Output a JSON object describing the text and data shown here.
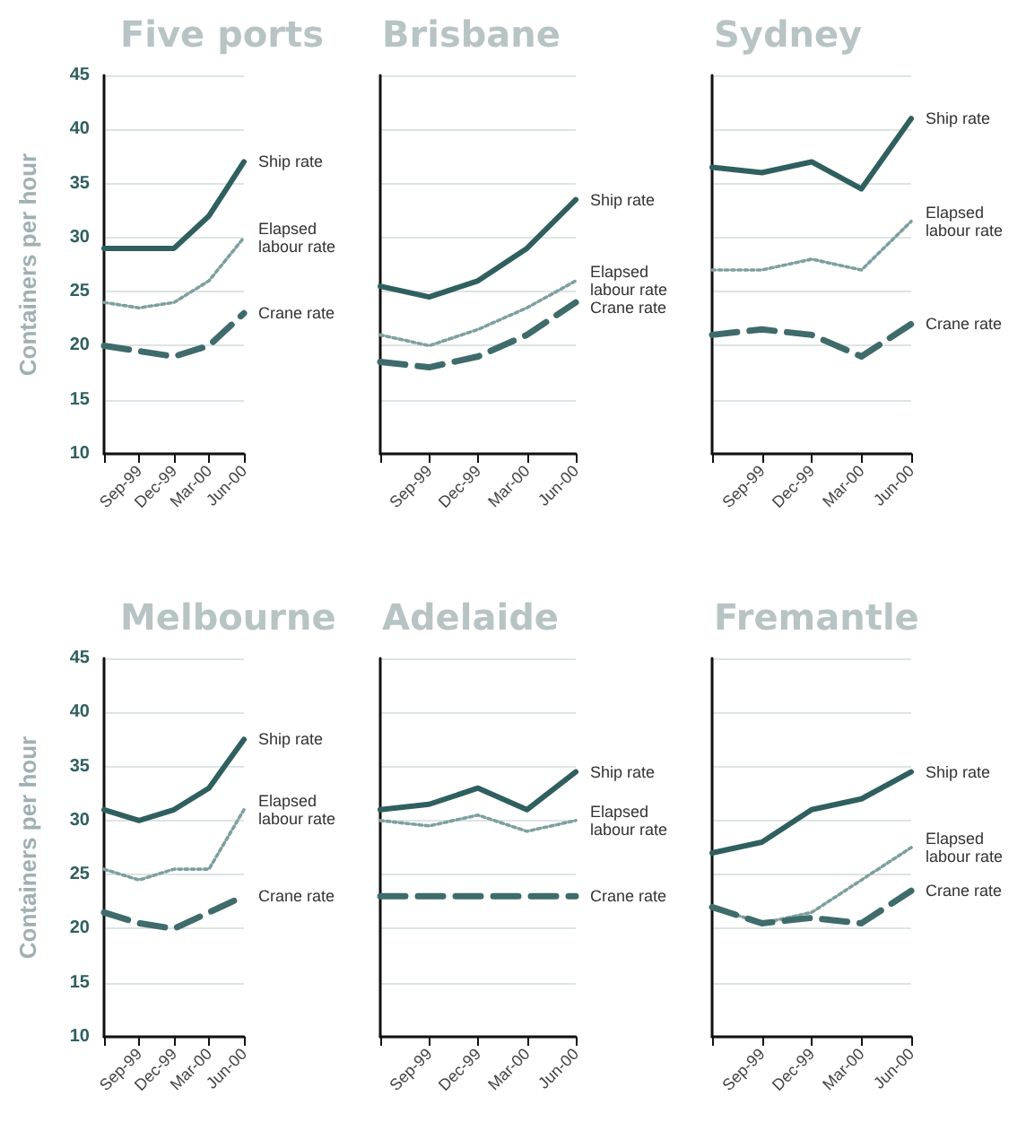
{
  "chart_data": [
    {
      "type": "line",
      "title": "Five ports",
      "ylabel": "Containers per hour",
      "categories": [
        null,
        "Sep-99",
        "Dec-99",
        "Mar-00",
        "Jun-00"
      ],
      "ylim": [
        10,
        45
      ],
      "yticks": [
        10,
        15,
        20,
        25,
        30,
        35,
        40,
        45
      ],
      "grid": "y",
      "legend": false,
      "marker": "none",
      "series": [
        {
          "name": "Ship rate",
          "color": "#2f5f5f",
          "line_style": "solid",
          "values": [
            29,
            29,
            29,
            32,
            37
          ]
        },
        {
          "name": "Elapsed labour rate",
          "color": "#7f9f9f",
          "line_style": "dotted",
          "values": [
            24,
            23.5,
            24,
            26,
            30
          ]
        },
        {
          "name": "Crane rate",
          "color": "#3f6b6b",
          "line_style": "dashed",
          "values": [
            20,
            19.5,
            19,
            20,
            23
          ]
        }
      ]
    },
    {
      "type": "line",
      "title": "Brisbane",
      "categories": [
        null,
        "Sep-99",
        "Dec-99",
        "Mar-00",
        "Jun-00"
      ],
      "ylim": [
        10,
        45
      ],
      "yticks": [
        10,
        15,
        20,
        25,
        30,
        35,
        40,
        45
      ],
      "grid": "y",
      "legend": false,
      "marker": "none",
      "tick_labels": "x",
      "series": [
        {
          "name": "Ship rate",
          "color": "#2f5f5f",
          "line_style": "solid",
          "values": [
            25.5,
            24.5,
            26,
            29,
            33.5
          ]
        },
        {
          "name": "Elapsed labour rate",
          "color": "#7f9f9f",
          "line_style": "dotted",
          "values": [
            21,
            20,
            21.5,
            23.5,
            26
          ]
        },
        {
          "name": "Crane rate",
          "color": "#3f6b6b",
          "line_style": "dashed",
          "values": [
            18.5,
            18,
            19,
            21,
            24
          ]
        }
      ]
    },
    {
      "type": "line",
      "title": "Sydney",
      "categories": [
        null,
        "Sep-99",
        "Dec-99",
        "Mar-00",
        "Jun-00"
      ],
      "ylim": [
        10,
        45
      ],
      "yticks": [
        10,
        15,
        20,
        25,
        30,
        35,
        40,
        45
      ],
      "grid": "y",
      "legend": false,
      "marker": "none",
      "tick_labels": "x",
      "series": [
        {
          "name": "Ship rate",
          "color": "#2f5f5f",
          "line_style": "solid",
          "values": [
            36.5,
            36,
            37,
            34.5,
            41
          ]
        },
        {
          "name": "Elapsed labour rate",
          "color": "#7f9f9f",
          "line_style": "dotted",
          "values": [
            27,
            27,
            28,
            27,
            31.5
          ]
        },
        {
          "name": "Crane rate",
          "color": "#3f6b6b",
          "line_style": "dashed",
          "values": [
            21,
            21.5,
            21,
            19,
            22
          ]
        }
      ]
    },
    {
      "type": "line",
      "title": "Melbourne",
      "ylabel": "Containers per hour",
      "categories": [
        null,
        "Sep-99",
        "Dec-99",
        "Mar-00",
        "Jun-00"
      ],
      "ylim": [
        10,
        45
      ],
      "yticks": [
        10,
        15,
        20,
        25,
        30,
        35,
        40,
        45
      ],
      "grid": "y",
      "legend": false,
      "marker": "none",
      "series": [
        {
          "name": "Ship rate",
          "color": "#2f5f5f",
          "line_style": "solid",
          "values": [
            31,
            30,
            31,
            33,
            37.5
          ]
        },
        {
          "name": "Elapsed labour rate",
          "color": "#7f9f9f",
          "line_style": "dotted",
          "values": [
            25.5,
            24.5,
            25.5,
            25.5,
            31
          ]
        },
        {
          "name": "Crane rate",
          "color": "#3f6b6b",
          "line_style": "dashed",
          "values": [
            21.5,
            20.5,
            20,
            21.5,
            23
          ]
        }
      ]
    },
    {
      "type": "line",
      "title": "Adelaide",
      "categories": [
        null,
        "Sep-99",
        "Dec-99",
        "Mar-00",
        "Jun-00"
      ],
      "ylim": [
        10,
        45
      ],
      "yticks": [
        10,
        15,
        20,
        25,
        30,
        35,
        40,
        45
      ],
      "grid": "y",
      "legend": false,
      "marker": "none",
      "tick_labels": "x",
      "series": [
        {
          "name": "Ship rate",
          "color": "#2f5f5f",
          "line_style": "solid",
          "values": [
            31,
            31.5,
            33,
            31,
            34.5
          ]
        },
        {
          "name": "Elapsed labour rate",
          "color": "#7f9f9f",
          "line_style": "dotted",
          "values": [
            30,
            29.5,
            30.5,
            29,
            30
          ]
        },
        {
          "name": "Crane rate",
          "color": "#3f6b6b",
          "line_style": "dashed",
          "values": [
            23,
            23,
            23,
            23,
            23
          ]
        }
      ]
    },
    {
      "type": "line",
      "title": "Fremantle",
      "categories": [
        null,
        "Sep-99",
        "Dec-99",
        "Mar-00",
        "Jun-00"
      ],
      "ylim": [
        10,
        45
      ],
      "yticks": [
        10,
        15,
        20,
        25,
        30,
        35,
        40,
        45
      ],
      "grid": "y",
      "legend": false,
      "marker": "none",
      "tick_labels": "x",
      "series": [
        {
          "name": "Ship rate",
          "color": "#2f5f5f",
          "line_style": "solid",
          "values": [
            27,
            28,
            31,
            32,
            34.5
          ]
        },
        {
          "name": "Elapsed labour rate",
          "color": "#7f9f9f",
          "line_style": "dotted",
          "values": [
            22,
            20.5,
            21.5,
            24.5,
            27.5
          ]
        },
        {
          "name": "Crane rate",
          "color": "#3f6b6b",
          "line_style": "dashed",
          "values": [
            22,
            20.5,
            21,
            20.5,
            23.5
          ]
        }
      ]
    }
  ]
}
